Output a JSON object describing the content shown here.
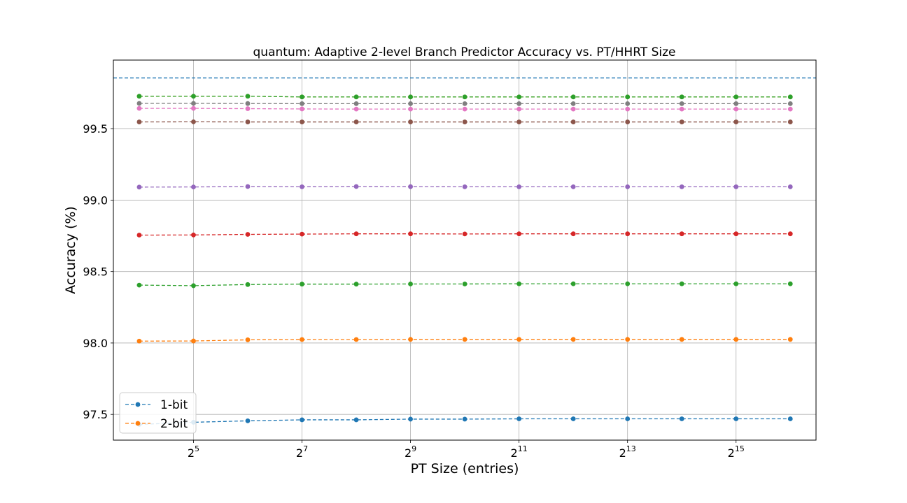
{
  "chart_data": {
    "type": "line",
    "title": "quantum: Adaptive 2-level Branch Predictor Accuracy vs. PT/HHRT Size",
    "xlabel": "PT Size (entries)",
    "ylabel": "Accuracy (%)",
    "x_scale": "log2",
    "x": [
      16,
      32,
      64,
      128,
      256,
      512,
      1024,
      2048,
      4096,
      8192,
      16384,
      32768,
      65536
    ],
    "x_ticks": [
      32,
      128,
      512,
      2048,
      8192,
      32768
    ],
    "x_tick_labels": [
      {
        "base": "2",
        "exp": "5"
      },
      {
        "base": "2",
        "exp": "7"
      },
      {
        "base": "2",
        "exp": "9"
      },
      {
        "base": "2",
        "exp": "11"
      },
      {
        "base": "2",
        "exp": "13"
      },
      {
        "base": "2",
        "exp": "15"
      }
    ],
    "xlim": [
      11.5,
      91000
    ],
    "ylim": [
      97.32,
      99.98
    ],
    "y_ticks": [
      97.5,
      98.0,
      98.5,
      99.0,
      99.5
    ],
    "y_tick_labels": [
      "97.5",
      "98.0",
      "98.5",
      "99.0",
      "99.5"
    ],
    "grid": true,
    "legend_position": "lower-left",
    "reference_line": {
      "y": 99.855,
      "color": "#1f77b4"
    },
    "series": [
      {
        "name": "1-bit",
        "color": "#1f77b4",
        "values": [
          97.43,
          97.445,
          97.455,
          97.462,
          97.462,
          97.467,
          97.467,
          97.469,
          97.469,
          97.469,
          97.469,
          97.469,
          97.469
        ]
      },
      {
        "name": "2-bit",
        "color": "#ff7f0e",
        "values": [
          98.013,
          98.014,
          98.022,
          98.024,
          98.024,
          98.025,
          98.025,
          98.025,
          98.025,
          98.025,
          98.025,
          98.025,
          98.025
        ]
      },
      {
        "color": "#2ca02c",
        "values": [
          98.405,
          98.401,
          98.409,
          98.412,
          98.412,
          98.413,
          98.413,
          98.414,
          98.414,
          98.414,
          98.414,
          98.414,
          98.414
        ]
      },
      {
        "color": "#d62728",
        "values": [
          98.755,
          98.756,
          98.76,
          98.762,
          98.764,
          98.764,
          98.763,
          98.764,
          98.764,
          98.764,
          98.764,
          98.764,
          98.764
        ]
      },
      {
        "color": "#9467bd",
        "values": [
          99.091,
          99.092,
          99.095,
          99.093,
          99.095,
          99.094,
          99.093,
          99.093,
          99.093,
          99.093,
          99.093,
          99.093,
          99.093
        ]
      },
      {
        "color": "#8c564b",
        "values": [
          99.547,
          99.548,
          99.547,
          99.547,
          99.547,
          99.547,
          99.547,
          99.547,
          99.547,
          99.547,
          99.547,
          99.547,
          99.547
        ]
      },
      {
        "color": "#e377c2",
        "values": [
          99.642,
          99.642,
          99.64,
          99.638,
          99.637,
          99.637,
          99.637,
          99.637,
          99.637,
          99.637,
          99.637,
          99.637,
          99.637
        ]
      },
      {
        "color": "#7f7f7f",
        "values": [
          99.677,
          99.677,
          99.676,
          99.675,
          99.675,
          99.675,
          99.675,
          99.675,
          99.675,
          99.675,
          99.675,
          99.675,
          99.675
        ]
      },
      {
        "color": "#bcbd22",
        "values": [
          99.727,
          99.727,
          99.727,
          99.722,
          99.722,
          99.722,
          99.722,
          99.722,
          99.722,
          99.722,
          99.722,
          99.722,
          99.722
        ]
      },
      {
        "color": "#2ca02c",
        "values": [
          99.727,
          99.727,
          99.727,
          99.722,
          99.722,
          99.722,
          99.722,
          99.722,
          99.722,
          99.722,
          99.722,
          99.722,
          99.722
        ]
      }
    ]
  }
}
